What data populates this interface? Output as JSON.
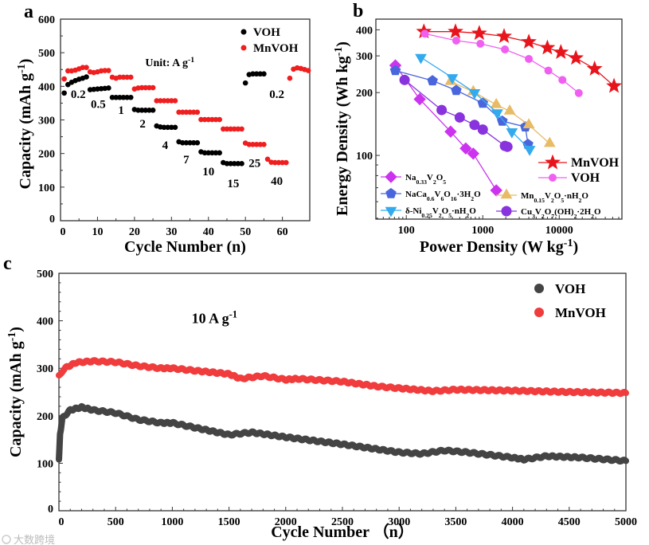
{
  "chart_data": [
    {
      "panel": "a",
      "type": "scatter",
      "title": "",
      "xlabel": [
        [
          "Cycle Number (n)",
          ""
        ]
      ],
      "ylabel": [
        [
          "Capacity (mAh g",
          ""
        ],
        [
          "-1",
          "sup"
        ],
        [
          ")",
          ""
        ]
      ],
      "xlim": [
        0,
        67.4
      ],
      "ylim": [
        0,
        600
      ],
      "xticks": [
        0,
        10,
        20,
        30,
        40,
        50,
        60
      ],
      "yticks": [
        0,
        100,
        200,
        300,
        400,
        500,
        600
      ],
      "legend_position": "top-right",
      "unit_note": [
        [
          "Unit: A g",
          ""
        ],
        [
          "-1",
          "sup"
        ]
      ],
      "unit_note_at": [
        22.9,
        460
      ],
      "series": [
        {
          "name": "VOH",
          "color": "#000000",
          "x": [
            1,
            2,
            3,
            4,
            5,
            6,
            7,
            8,
            9,
            10,
            11,
            12,
            13,
            14,
            15,
            16,
            17,
            18,
            19,
            20,
            21,
            22,
            23,
            24,
            25,
            26,
            27,
            28,
            29,
            30,
            31,
            32,
            33,
            34,
            35,
            36,
            37,
            38,
            39,
            40,
            41,
            42,
            43,
            44,
            45,
            46,
            47,
            48,
            49,
            50,
            51,
            52,
            53,
            54,
            55
          ],
          "y": [
            380,
            405,
            412,
            417,
            421,
            424,
            428,
            390,
            391,
            392,
            393,
            394,
            395,
            367,
            367,
            367,
            367,
            367,
            367,
            331,
            329,
            329,
            329,
            329,
            329,
            282,
            279,
            278,
            278,
            278,
            278,
            235,
            232,
            232,
            232,
            232,
            232,
            205,
            202,
            202,
            202,
            202,
            202,
            173,
            170,
            170,
            170,
            170,
            170,
            410,
            435,
            437,
            437,
            437,
            437
          ]
        },
        {
          "name": "MnVOH",
          "color": "#f01e1e",
          "x": [
            1,
            2,
            3,
            4,
            5,
            6,
            7,
            8,
            9,
            10,
            11,
            12,
            13,
            14,
            15,
            16,
            17,
            18,
            19,
            20,
            21,
            22,
            23,
            24,
            25,
            26,
            27,
            28,
            29,
            30,
            31,
            32,
            33,
            34,
            35,
            36,
            37,
            38,
            39,
            40,
            41,
            42,
            43,
            44,
            45,
            46,
            47,
            48,
            49,
            50,
            51,
            52,
            53,
            54,
            55,
            56,
            57,
            58,
            59,
            60,
            61,
            62,
            63,
            64,
            65,
            66,
            67
          ],
          "y": [
            422,
            446,
            446,
            448,
            452,
            456,
            456,
            443,
            441,
            443,
            446,
            447,
            447,
            427,
            424,
            427,
            427,
            427,
            427,
            392,
            395,
            396,
            396,
            396,
            396,
            357,
            357,
            357,
            357,
            357,
            357,
            323,
            323,
            323,
            323,
            323,
            323,
            301,
            301,
            301,
            301,
            301,
            301,
            273,
            273,
            273,
            273,
            273,
            273,
            231,
            227,
            227,
            227,
            227,
            227,
            183,
            174,
            173,
            173,
            173,
            173,
            424,
            451,
            455,
            453,
            450,
            447
          ]
        }
      ],
      "annotations": [
        {
          "text": "0.2",
          "x": 4.8,
          "y": 365
        },
        {
          "text": "0.5",
          "x": 10.2,
          "y": 336
        },
        {
          "text": "1",
          "x": 16.4,
          "y": 318
        },
        {
          "text": "2",
          "x": 22.2,
          "y": 277
        },
        {
          "text": "4",
          "x": 28.3,
          "y": 213
        },
        {
          "text": "7",
          "x": 34.0,
          "y": 171
        },
        {
          "text": "10",
          "x": 40.0,
          "y": 135
        },
        {
          "text": "15",
          "x": 46.7,
          "y": 100
        },
        {
          "text": "25",
          "x": 52.5,
          "y": 160
        },
        {
          "text": "40",
          "x": 58.5,
          "y": 107
        },
        {
          "text": "0.2",
          "x": 58.5,
          "y": 365
        }
      ]
    },
    {
      "panel": "b",
      "type": "line",
      "title": "",
      "xlabel": [
        [
          "Power Density (W kg",
          ""
        ],
        [
          "-1",
          "sup"
        ],
        [
          ")",
          ""
        ]
      ],
      "ylabel": [
        [
          "Energy Density (Wh kg",
          ""
        ],
        [
          "-1",
          "sup"
        ],
        [
          ")",
          ""
        ]
      ],
      "xscale": "log",
      "yscale": "log",
      "xlim": [
        40,
        66000
      ],
      "ylim": [
        49.5,
        450
      ],
      "xticks": [
        100,
        1000,
        10000
      ],
      "yticks": [
        100,
        200,
        300,
        400
      ],
      "legend_position": "bottom",
      "series": [
        {
          "name": [
            [
              "MnVOH",
              ""
            ]
          ],
          "color": "#e8141c",
          "marker": "star",
          "x": [
            170,
            440,
            900,
            1900,
            4000,
            7000,
            10500,
            16500,
            29000,
            52000
          ],
          "y": [
            392,
            392,
            385,
            372,
            350,
            328,
            312,
            293,
            260,
            215
          ]
        },
        {
          "name": [
            [
              "VOH",
              ""
            ]
          ],
          "color": "#f060f0",
          "marker": "circle-small",
          "x": [
            175,
            450,
            930,
            1950,
            4000,
            7200,
            11000,
            18000
          ],
          "y": [
            383,
            355,
            343,
            322,
            290,
            255,
            230,
            199
          ]
        },
        {
          "name": [
            [
              "Na",
              ""
            ],
            [
              "0.33",
              "sub"
            ],
            [
              "V",
              ""
            ],
            [
              "2",
              "sub"
            ],
            [
              "O",
              ""
            ],
            [
              "5",
              "sub"
            ]
          ],
          "color": "#cc33ee",
          "marker": "diamond",
          "x": [
            72,
            150,
            380,
            600,
            750,
            1500
          ],
          "y": [
            270,
            186,
            130,
            108,
            102,
            68
          ]
        },
        {
          "name": [
            [
              "NaCa",
              ""
            ],
            [
              "0.6",
              "sub"
            ],
            [
              "V",
              ""
            ],
            [
              "6",
              "sub"
            ],
            [
              "O",
              ""
            ],
            [
              "16",
              "sub"
            ],
            [
              "·3H",
              ""
            ],
            [
              "2",
              "sub"
            ],
            [
              "O",
              ""
            ]
          ],
          "color": "#4a66dd",
          "marker": "pentagon",
          "x": [
            72,
            220,
            450,
            1000,
            1800,
            3600,
            3900
          ],
          "y": [
            255,
            228,
            205,
            178,
            146,
            137,
            113
          ]
        },
        {
          "name": [
            [
              "Mn",
              ""
            ],
            [
              "0.15",
              "sub"
            ],
            [
              "V",
              ""
            ],
            [
              "2",
              "sub"
            ],
            [
              "O",
              ""
            ],
            [
              "5",
              "sub"
            ],
            [
              "·nH",
              ""
            ],
            [
              "2",
              "sub"
            ],
            [
              "O",
              ""
            ]
          ],
          "color": "#e8bb66",
          "marker": "triangle-up",
          "x": [
            380,
            750,
            1500,
            2250,
            4000,
            7500
          ],
          "y": [
            226,
            202,
            175,
            163,
            140,
            114
          ]
        },
        {
          "name": [
            [
              "δ-Ni",
              ""
            ],
            [
              "0.25",
              "sub"
            ],
            [
              "V",
              ""
            ],
            [
              "2",
              "sub"
            ],
            [
              "O",
              ""
            ],
            [
              "5",
              "sub"
            ],
            [
              "·nH",
              ""
            ],
            [
              "2",
              "sub"
            ],
            [
              "O",
              ""
            ]
          ],
          "color": "#33aaee",
          "marker": "triangle-down",
          "x": [
            155,
            400,
            780,
            1550,
            2400,
            4100
          ],
          "y": [
            295,
            236,
            200,
            160,
            130,
            107
          ]
        },
        {
          "name": [
            [
              "Cu",
              ""
            ],
            [
              "3",
              "sub"
            ],
            [
              "V",
              ""
            ],
            [
              "2",
              "sub"
            ],
            [
              "O",
              ""
            ],
            [
              "7",
              "sub"
            ],
            [
              "(OH)",
              ""
            ],
            [
              "2",
              "sub"
            ],
            [
              "·2H",
              ""
            ],
            [
              "2",
              "sub"
            ],
            [
              "O",
              ""
            ]
          ],
          "color": "#8833dd",
          "marker": "circle",
          "x": [
            95,
            290,
            500,
            780,
            1000,
            1950,
            2100
          ],
          "y": [
            230,
            165,
            152,
            140,
            133,
            111,
            110
          ]
        }
      ]
    },
    {
      "panel": "c",
      "type": "scatter",
      "title": "",
      "xlabel": [
        [
          "Cycle Number （n）",
          ""
        ]
      ],
      "ylabel": [
        [
          "Capacity (mAh g",
          ""
        ],
        [
          "-1",
          "sup"
        ],
        [
          ")",
          ""
        ]
      ],
      "xlim": [
        0,
        5000
      ],
      "ylim": [
        0,
        500
      ],
      "xticks": [
        0,
        500,
        1000,
        1500,
        2000,
        2500,
        3000,
        3500,
        4000,
        4500,
        5000
      ],
      "yticks": [
        0,
        100,
        200,
        300,
        400,
        500
      ],
      "legend_position": "top-right",
      "condition": [
        [
          "10 A g",
          ""
        ],
        [
          "-1",
          "sup"
        ]
      ],
      "condition_at": [
        1170,
        395
      ],
      "series": [
        {
          "name": "VOH",
          "color": "#444444",
          "x": [
            0,
            10,
            30,
            100,
            200,
            300,
            500,
            700,
            900,
            1000,
            1200,
            1500,
            1700,
            2000,
            2500,
            3000,
            3200,
            3400,
            3600,
            4000,
            4100,
            4300,
            4600,
            5000
          ],
          "y": [
            108,
            160,
            195,
            212,
            218,
            212,
            206,
            192,
            185,
            185,
            175,
            160,
            165,
            155,
            140,
            123,
            120,
            127,
            123,
            112,
            108,
            115,
            112,
            105
          ]
        },
        {
          "name": "MnVOH",
          "color": "#f03c3c",
          "x": [
            0,
            50,
            150,
            300,
            500,
            700,
            900,
            1000,
            1200,
            1500,
            1600,
            1800,
            2000,
            2100,
            2500,
            2800,
            3000,
            3300,
            3500,
            4000,
            4500,
            5000
          ],
          "y": [
            285,
            300,
            312,
            315,
            313,
            305,
            300,
            300,
            295,
            288,
            278,
            284,
            276,
            278,
            272,
            262,
            258,
            252,
            255,
            253,
            250,
            248
          ]
        }
      ]
    }
  ],
  "panel_labels": [
    "a",
    "b",
    "c"
  ],
  "watermark": "大数跨境"
}
